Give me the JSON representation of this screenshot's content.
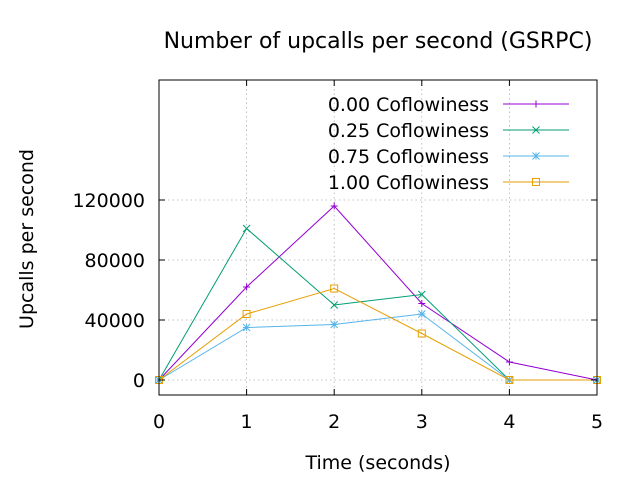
{
  "chart_data": {
    "type": "line",
    "title": "Number of upcalls per second (GSRPC)",
    "xlabel": "Time (seconds)",
    "ylabel": "Upcalls per second",
    "x": [
      0,
      1,
      2,
      3,
      4,
      5
    ],
    "xlim": [
      0,
      5
    ],
    "ylim": [
      -10000,
      200000
    ],
    "xticks": [
      "0",
      "1",
      "2",
      "3",
      "4",
      "5"
    ],
    "yticks": [
      0,
      40000,
      80000,
      120000
    ],
    "ytick_labels": [
      "0",
      "40000",
      "80000",
      "120000"
    ],
    "grid": true,
    "legend_position": "top-right",
    "series": [
      {
        "name": "0.00 Coflowiness",
        "color": "#9400d3",
        "marker": "plus",
        "values": [
          0,
          62000,
          116000,
          51000,
          12000,
          0
        ]
      },
      {
        "name": "0.25 Coflowiness",
        "color": "#009e73",
        "marker": "cross",
        "values": [
          0,
          101000,
          50000,
          57000,
          0,
          0
        ]
      },
      {
        "name": "0.75 Coflowiness",
        "color": "#56b4e9",
        "marker": "star",
        "values": [
          0,
          35000,
          37000,
          44000,
          0,
          0
        ]
      },
      {
        "name": "1.00 Coflowiness",
        "color": "#e69f00",
        "marker": "square",
        "values": [
          0,
          44000,
          61000,
          31000,
          0,
          0
        ]
      }
    ]
  }
}
